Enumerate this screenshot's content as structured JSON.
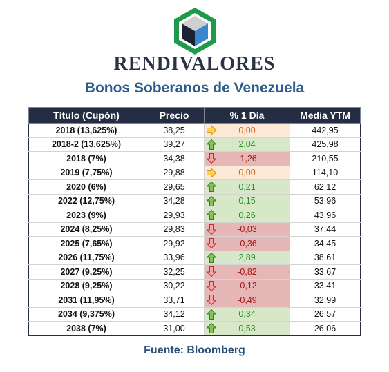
{
  "header": {
    "brand": "RENDIVALORES",
    "subtitle": "Bonos Soberanos de Venezuela"
  },
  "table": {
    "columns": [
      "Título (Cupón)",
      "Precio",
      "% 1 Día",
      "Media YTM"
    ],
    "rows": [
      {
        "title": "2018 (13,625%)",
        "price": "38,25",
        "change": "0,00",
        "trend": "flat",
        "ytm": "442,95"
      },
      {
        "title": "2018-2 (13,625%)",
        "price": "39,27",
        "change": "2,04",
        "trend": "up",
        "ytm": "425,98"
      },
      {
        "title": "2018 (7%)",
        "price": "34,38",
        "change": "-1,26",
        "trend": "down",
        "ytm": "210,55"
      },
      {
        "title": "2019 (7,75%)",
        "price": "29,88",
        "change": "0,00",
        "trend": "flat",
        "ytm": "114,10"
      },
      {
        "title": "2020 (6%)",
        "price": "29,65",
        "change": "0,21",
        "trend": "up",
        "ytm": "62,12"
      },
      {
        "title": "2022 (12,75%)",
        "price": "34,28",
        "change": "0,15",
        "trend": "up",
        "ytm": "53,96"
      },
      {
        "title": "2023 (9%)",
        "price": "29,93",
        "change": "0,26",
        "trend": "up",
        "ytm": "43,96"
      },
      {
        "title": "2024 (8,25%)",
        "price": "29,83",
        "change": "-0,03",
        "trend": "down",
        "ytm": "37,44"
      },
      {
        "title": "2025 (7,65%)",
        "price": "29,92",
        "change": "-0,36",
        "trend": "down",
        "ytm": "34,45"
      },
      {
        "title": "2026 (11,75%)",
        "price": "33,96",
        "change": "2,89",
        "trend": "up",
        "ytm": "38,61"
      },
      {
        "title": "2027 (9,25%)",
        "price": "32,25",
        "change": "-0,82",
        "trend": "down",
        "ytm": "33,67"
      },
      {
        "title": "2028 (9,25%)",
        "price": "30,22",
        "change": "-0,12",
        "trend": "down",
        "ytm": "33,41"
      },
      {
        "title": "2031 (11,95%)",
        "price": "33,71",
        "change": "-0,49",
        "trend": "down",
        "ytm": "32,99"
      },
      {
        "title": "2034 (9,375%)",
        "price": "34,12",
        "change": "0,34",
        "trend": "up",
        "ytm": "26,57"
      },
      {
        "title": "2038 (7%)",
        "price": "31,00",
        "change": "0,53",
        "trend": "up",
        "ytm": "26,06"
      }
    ]
  },
  "footer": {
    "source": "Fuente: Bloomberg"
  },
  "icons": {
    "up": "arrow-up-icon",
    "down": "arrow-down-icon",
    "flat": "arrow-right-icon"
  },
  "colors": {
    "header_bg": "#252d44",
    "subtitle": "#2e5d8c",
    "up_bg": "#d7e8c8",
    "up_text": "#2f8f2f",
    "down_bg": "#e6b7b7",
    "down_text": "#a01818",
    "flat_bg": "#fde9d6",
    "flat_text": "#cc6a2a",
    "logo_green": "#1e9a4a",
    "logo_blue": "#3a86c8"
  }
}
